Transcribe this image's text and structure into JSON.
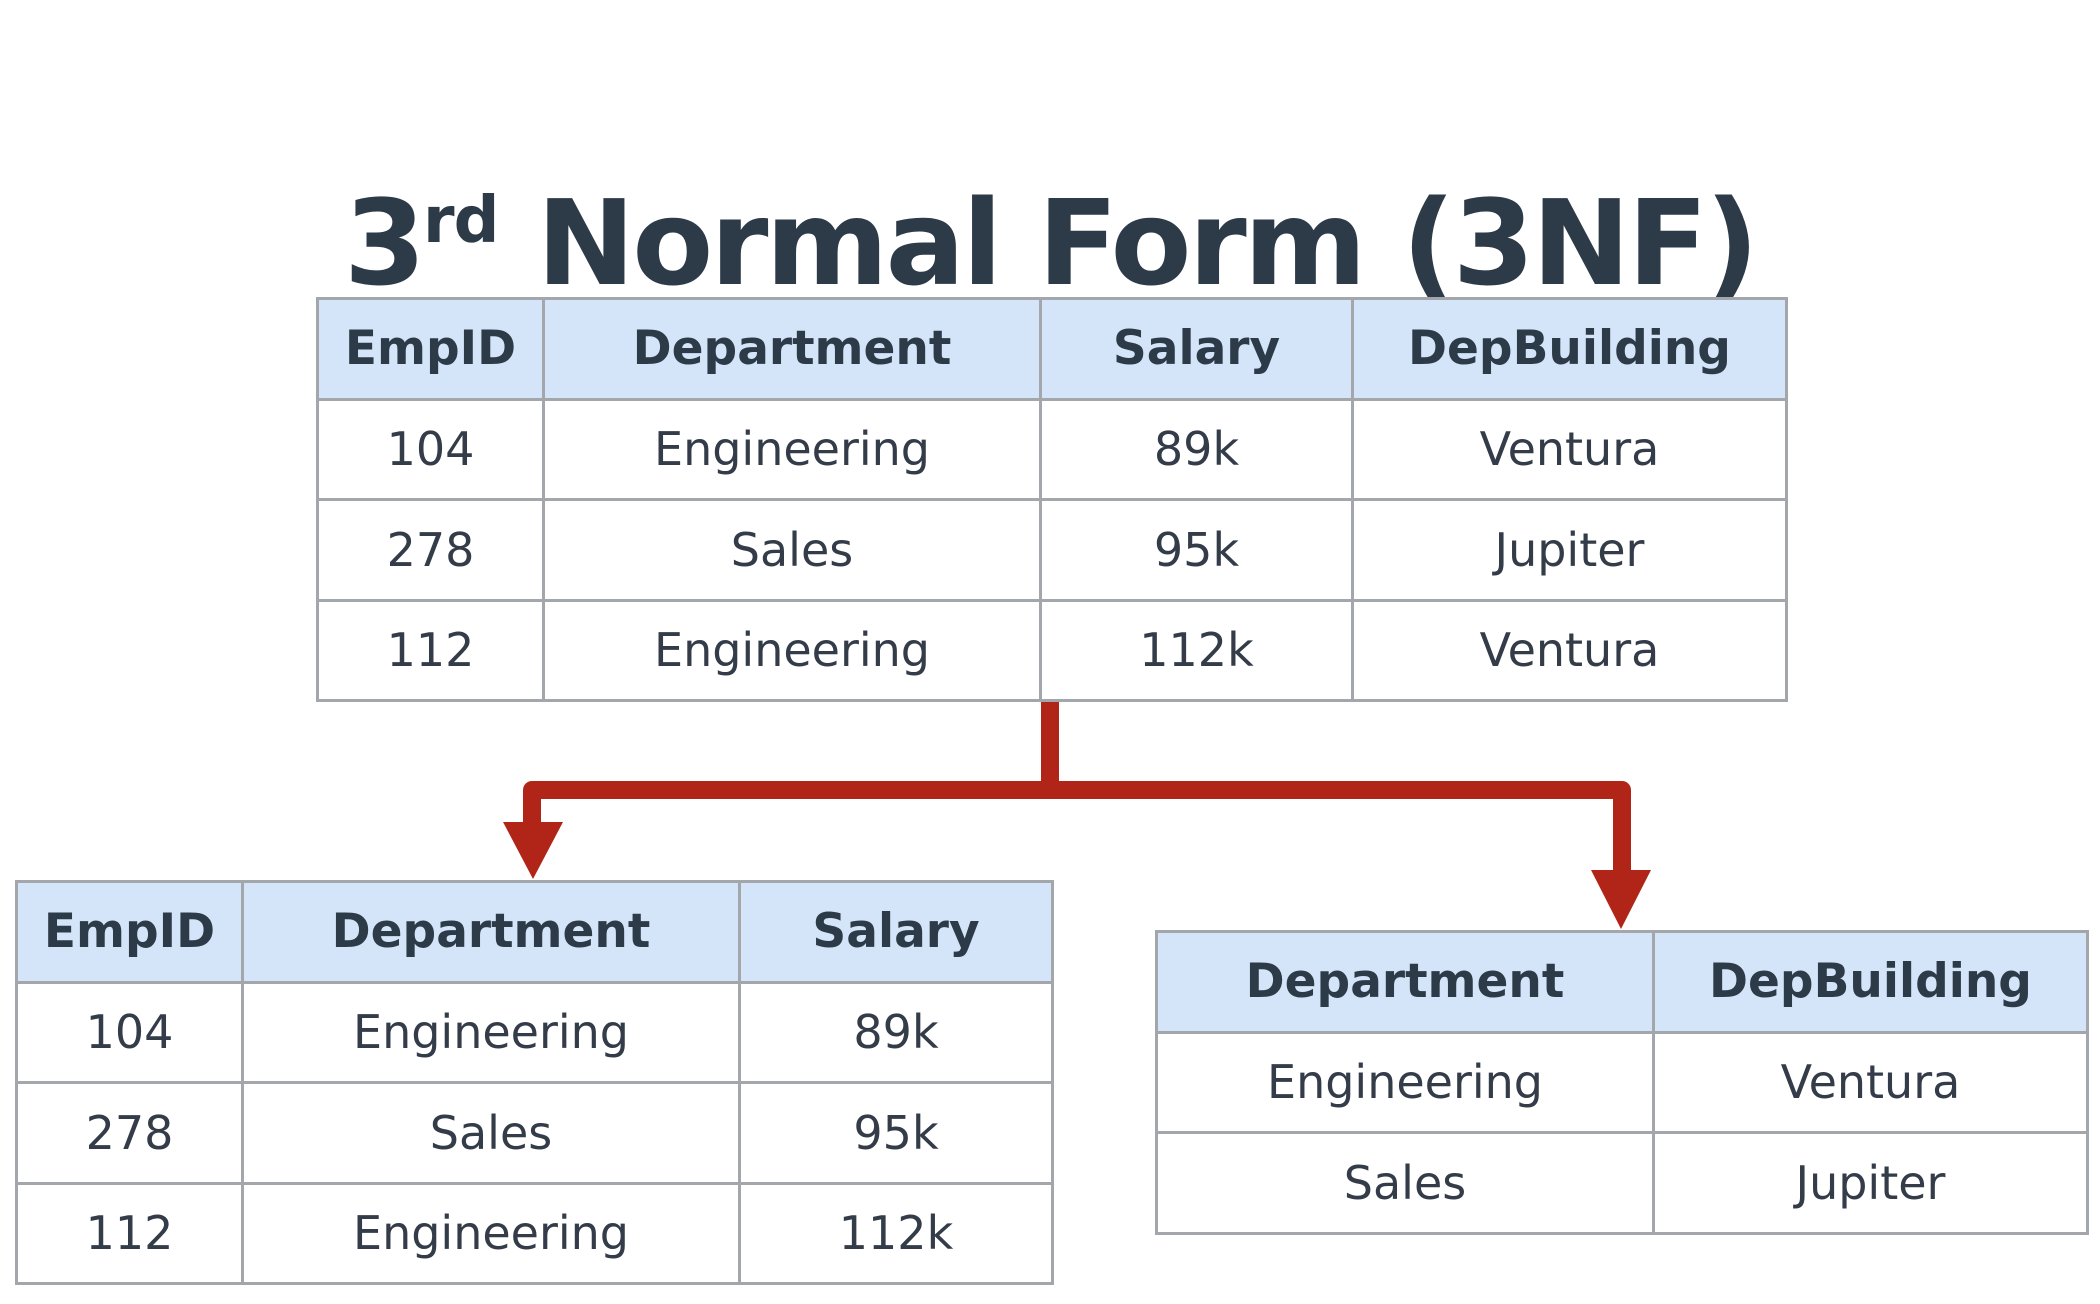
{
  "title": {
    "number": "3",
    "superscript": "rd",
    "rest": " Normal Form (3NF)"
  },
  "colors": {
    "header_fill": "#d4e5fa",
    "border": "#a3a7ab",
    "arrow": "#b12519",
    "text": "#2d3a48"
  },
  "original_table": {
    "headers": [
      "EmpID",
      "Department",
      "Salary",
      "DepBuilding"
    ],
    "rows": [
      [
        "104",
        "Engineering",
        "89k",
        "Ventura"
      ],
      [
        "278",
        "Sales",
        "95k",
        "Jupiter"
      ],
      [
        "112",
        "Engineering",
        "112k",
        "Ventura"
      ]
    ]
  },
  "employee_table": {
    "headers": [
      "EmpID",
      "Department",
      "Salary"
    ],
    "rows": [
      [
        "104",
        "Engineering",
        "89k"
      ],
      [
        "278",
        "Sales",
        "95k"
      ],
      [
        "112",
        "Engineering",
        "112k"
      ]
    ]
  },
  "department_table": {
    "headers": [
      "Department",
      "DepBuilding"
    ],
    "rows": [
      [
        "Engineering",
        "Ventura"
      ],
      [
        "Sales",
        "Jupiter"
      ]
    ]
  }
}
